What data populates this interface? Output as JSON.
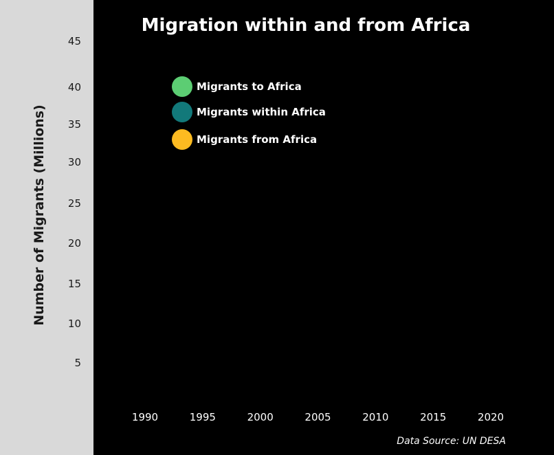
{
  "chart_data": {
    "type": "line",
    "title": "Migration within and from Africa",
    "ylabel": "Number of Migrants (Millions)",
    "xlabel": "",
    "y_ticks": [
      "45",
      "40",
      "35",
      "30",
      "25",
      "20",
      "15",
      "10",
      "5"
    ],
    "x_ticks": [
      "1990",
      "1995",
      "2000",
      "2005",
      "2010",
      "2015",
      "2020"
    ],
    "ylim": [
      0,
      45
    ],
    "xlim": [
      1990,
      2020
    ],
    "legend_position": "top-left",
    "series": [
      {
        "name": "Migrants to Africa",
        "color": "#5ccd73",
        "values": []
      },
      {
        "name": "Migrants within Africa",
        "color": "#12797a",
        "values": []
      },
      {
        "name": "Migrants from Africa",
        "color": "#fdbb21",
        "values": []
      }
    ],
    "source": "Data Source: UN DESA"
  }
}
